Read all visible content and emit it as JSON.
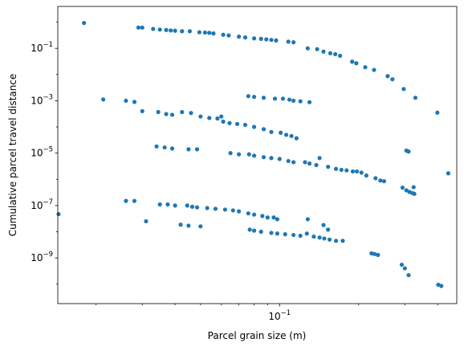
{
  "chart_data": {
    "type": "scatter",
    "xlabel": "Parcel grain size (m)",
    "ylabel": "Cumulative parcel travel distance",
    "x_scale": "log",
    "y_scale": "log",
    "xlim": [
      0.0143,
      0.473
    ],
    "ylim": [
      1.8e-11,
      3.98
    ],
    "grid": false,
    "marker_color": "#1f77b4",
    "x_ticks": [
      {
        "value": 0.1,
        "base": "10",
        "exp": "−1"
      }
    ],
    "y_ticks": [
      {
        "value": 1e-09,
        "base": "10",
        "exp": "−9"
      },
      {
        "value": 1e-07,
        "base": "10",
        "exp": "−7"
      },
      {
        "value": 1e-05,
        "base": "10",
        "exp": "−5"
      },
      {
        "value": 0.001,
        "base": "10",
        "exp": "−3"
      },
      {
        "value": 0.1,
        "base": "10",
        "exp": "−1"
      }
    ],
    "points": [
      [
        0.018,
        0.93
      ],
      [
        0.029,
        0.62
      ],
      [
        0.03,
        0.62
      ],
      [
        0.033,
        0.55
      ],
      [
        0.035,
        0.52
      ],
      [
        0.037,
        0.5
      ],
      [
        0.0385,
        0.48
      ],
      [
        0.04,
        0.47
      ],
      [
        0.0425,
        0.45
      ],
      [
        0.0455,
        0.45
      ],
      [
        0.0495,
        0.41
      ],
      [
        0.052,
        0.4
      ],
      [
        0.054,
        0.39
      ],
      [
        0.056,
        0.37
      ],
      [
        0.061,
        0.33
      ],
      [
        0.064,
        0.31
      ],
      [
        0.07,
        0.28
      ],
      [
        0.074,
        0.26
      ],
      [
        0.08,
        0.24
      ],
      [
        0.085,
        0.23
      ],
      [
        0.089,
        0.22
      ],
      [
        0.093,
        0.21
      ],
      [
        0.097,
        0.2
      ],
      [
        0.108,
        0.18
      ],
      [
        0.113,
        0.17
      ],
      [
        0.128,
        0.1
      ],
      [
        0.139,
        0.093
      ],
      [
        0.147,
        0.075
      ],
      [
        0.156,
        0.065
      ],
      [
        0.163,
        0.06
      ],
      [
        0.17,
        0.052
      ],
      [
        0.189,
        0.031
      ],
      [
        0.196,
        0.027
      ],
      [
        0.212,
        0.019
      ],
      [
        0.229,
        0.015
      ],
      [
        0.258,
        0.0087
      ],
      [
        0.269,
        0.0066
      ],
      [
        0.297,
        0.0028
      ],
      [
        0.329,
        0.0013
      ],
      [
        0.399,
        0.00035
      ],
      [
        0.0213,
        0.00112
      ],
      [
        0.026,
        0.001
      ],
      [
        0.028,
        0.0009
      ],
      [
        0.03,
        0.0004
      ],
      [
        0.0345,
        0.00037
      ],
      [
        0.037,
        0.00031
      ],
      [
        0.039,
        0.00029
      ],
      [
        0.0425,
        0.00037
      ],
      [
        0.046,
        0.00034
      ],
      [
        0.05,
        0.00025
      ],
      [
        0.054,
        0.00022
      ],
      [
        0.058,
        0.00021
      ],
      [
        0.06,
        0.00025
      ],
      [
        0.061,
        0.00016
      ],
      [
        0.0645,
        0.00014
      ],
      [
        0.069,
        0.00013
      ],
      [
        0.074,
        0.00012
      ],
      [
        0.08,
        0.0001
      ],
      [
        0.087,
        8.2e-05
      ],
      [
        0.076,
        0.0015
      ],
      [
        0.08,
        0.0014
      ],
      [
        0.087,
        0.0013
      ],
      [
        0.096,
        0.0012
      ],
      [
        0.103,
        0.0012
      ],
      [
        0.109,
        0.0011
      ],
      [
        0.113,
        0.001
      ],
      [
        0.12,
        0.00095
      ],
      [
        0.13,
        0.00088
      ],
      [
        0.093,
        6.4e-05
      ],
      [
        0.101,
        6e-05
      ],
      [
        0.106,
        5e-05
      ],
      [
        0.111,
        4.5e-05
      ],
      [
        0.116,
        3.7e-05
      ],
      [
        0.142,
        6.5e-06
      ],
      [
        0.034,
        1.8e-05
      ],
      [
        0.0365,
        1.65e-05
      ],
      [
        0.039,
        1.5e-05
      ],
      [
        0.045,
        1.4e-05
      ],
      [
        0.0485,
        1.4e-05
      ],
      [
        0.065,
        1e-05
      ],
      [
        0.07,
        9e-06
      ],
      [
        0.0765,
        9e-06
      ],
      [
        0.08,
        8e-06
      ],
      [
        0.087,
        7e-06
      ],
      [
        0.093,
        6.5e-06
      ],
      [
        0.1,
        6e-06
      ],
      [
        0.108,
        5e-06
      ],
      [
        0.113,
        4.5e-06
      ],
      [
        0.125,
        4.5e-06
      ],
      [
        0.13,
        4e-06
      ],
      [
        0.138,
        3.5e-06
      ],
      [
        0.153,
        3e-06
      ],
      [
        0.164,
        2.5e-06
      ],
      [
        0.172,
        2.3e-06
      ],
      [
        0.18,
        2.2e-06
      ],
      [
        0.19,
        2e-06
      ],
      [
        0.197,
        2e-06
      ],
      [
        0.205,
        1.8e-06
      ],
      [
        0.214,
        1.4e-06
      ],
      [
        0.232,
        1.1e-06
      ],
      [
        0.242,
        9e-07
      ],
      [
        0.25,
        8.5e-07
      ],
      [
        0.304,
        1.25e-05
      ],
      [
        0.31,
        1.15e-05
      ],
      [
        0.439,
        1.7e-06
      ],
      [
        0.0144,
        4.7e-08
      ],
      [
        0.026,
        1.5e-07
      ],
      [
        0.028,
        1.5e-07
      ],
      [
        0.031,
        2.5e-08
      ],
      [
        0.035,
        1.1e-07
      ],
      [
        0.0375,
        1.1e-07
      ],
      [
        0.04,
        1e-07
      ],
      [
        0.0445,
        1e-07
      ],
      [
        0.0465,
        9e-08
      ],
      [
        0.0485,
        8.5e-08
      ],
      [
        0.053,
        8e-08
      ],
      [
        0.057,
        7.5e-08
      ],
      [
        0.062,
        7e-08
      ],
      [
        0.0665,
        6.5e-08
      ],
      [
        0.07,
        6e-08
      ],
      [
        0.076,
        5e-08
      ],
      [
        0.08,
        4.5e-08
      ],
      [
        0.086,
        4e-08
      ],
      [
        0.09,
        3.5e-08
      ],
      [
        0.095,
        3.5e-08
      ],
      [
        0.098,
        3e-08
      ],
      [
        0.042,
        1.85e-08
      ],
      [
        0.045,
        1.7e-08
      ],
      [
        0.05,
        1.6e-08
      ],
      [
        0.077,
        1.2e-08
      ],
      [
        0.08,
        1.1e-08
      ],
      [
        0.085,
        1e-08
      ],
      [
        0.093,
        9e-09
      ],
      [
        0.098,
        8.5e-09
      ],
      [
        0.105,
        8e-09
      ],
      [
        0.113,
        7.5e-09
      ],
      [
        0.12,
        7e-09
      ],
      [
        0.127,
        8.5e-09
      ],
      [
        0.135,
        6.5e-09
      ],
      [
        0.142,
        6e-09
      ],
      [
        0.148,
        5.5e-09
      ],
      [
        0.155,
        5e-09
      ],
      [
        0.164,
        4.5e-09
      ],
      [
        0.174,
        4.5e-09
      ],
      [
        0.153,
        1.2e-08
      ],
      [
        0.147,
        1.8e-08
      ],
      [
        0.128,
        3e-08
      ],
      [
        0.224,
        1.5e-09
      ],
      [
        0.23,
        1.4e-09
      ],
      [
        0.237,
        1.3e-09
      ],
      [
        0.292,
        5.5e-10
      ],
      [
        0.3,
        4e-10
      ],
      [
        0.31,
        2.2e-10
      ],
      [
        0.402,
        9.5e-11
      ],
      [
        0.413,
        8.5e-11
      ],
      [
        0.294,
        4.8e-07
      ],
      [
        0.304,
        3.8e-07
      ],
      [
        0.312,
        3.3e-07
      ],
      [
        0.32,
        3e-07
      ],
      [
        0.326,
        2.8e-07
      ],
      [
        0.324,
        5e-07
      ]
    ]
  }
}
